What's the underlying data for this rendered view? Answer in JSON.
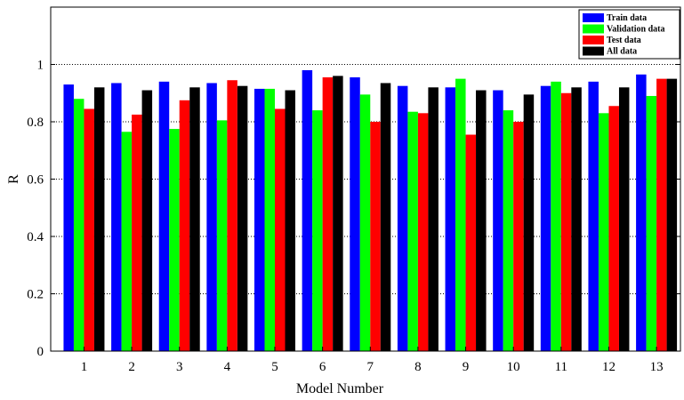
{
  "chart_data": {
    "type": "bar",
    "title": "",
    "xlabel": "Model Number",
    "ylabel": "R",
    "ylim": [
      0,
      1.2
    ],
    "yticks": [
      0,
      0.2,
      0.4,
      0.6,
      0.8,
      1
    ],
    "categories": [
      "1",
      "2",
      "3",
      "4",
      "5",
      "6",
      "7",
      "8",
      "9",
      "10",
      "11",
      "12",
      "13"
    ],
    "reference_line": 1,
    "grid": "dotted horizontal",
    "legend_position": "top-right",
    "series": [
      {
        "name": "Train data",
        "color": "#0000ff",
        "values": [
          0.93,
          0.935,
          0.94,
          0.935,
          0.915,
          0.98,
          0.955,
          0.925,
          0.92,
          0.91,
          0.925,
          0.94,
          0.965
        ]
      },
      {
        "name": "Validation data",
        "color": "#00ff00",
        "values": [
          0.88,
          0.765,
          0.775,
          0.805,
          0.915,
          0.84,
          0.895,
          0.835,
          0.95,
          0.84,
          0.94,
          0.83,
          0.89
        ]
      },
      {
        "name": "Test data",
        "color": "#ff0000",
        "values": [
          0.845,
          0.825,
          0.875,
          0.945,
          0.845,
          0.955,
          0.8,
          0.83,
          0.755,
          0.8,
          0.9,
          0.855,
          0.95
        ]
      },
      {
        "name": "All data",
        "color": "#000000",
        "values": [
          0.92,
          0.91,
          0.92,
          0.925,
          0.91,
          0.96,
          0.935,
          0.92,
          0.91,
          0.895,
          0.92,
          0.92,
          0.95
        ]
      }
    ]
  }
}
